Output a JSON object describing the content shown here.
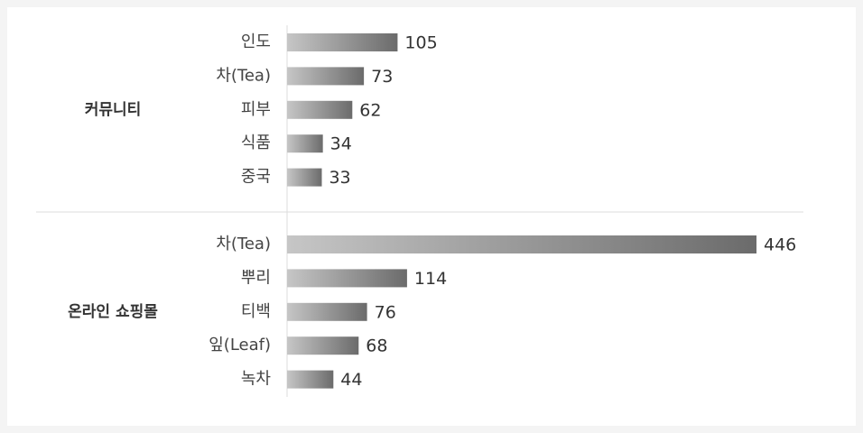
{
  "chart_data": {
    "type": "bar",
    "groups": [
      {
        "name": "커뮤니티",
        "categories": [
          "인도",
          "차(Tea)",
          "피부",
          "식품",
          "중국"
        ],
        "values": [
          105,
          73,
          62,
          34,
          33
        ]
      },
      {
        "name": "온라인 쇼핑몰",
        "categories": [
          "차(Tea)",
          "뿌리",
          "티백",
          "잎(Leaf)",
          "녹차"
        ],
        "values": [
          446,
          114,
          76,
          68,
          44
        ]
      }
    ],
    "colors": [
      "#c6c6c6",
      "#6b6b6b"
    ],
    "xlim": [
      0,
      446
    ]
  }
}
